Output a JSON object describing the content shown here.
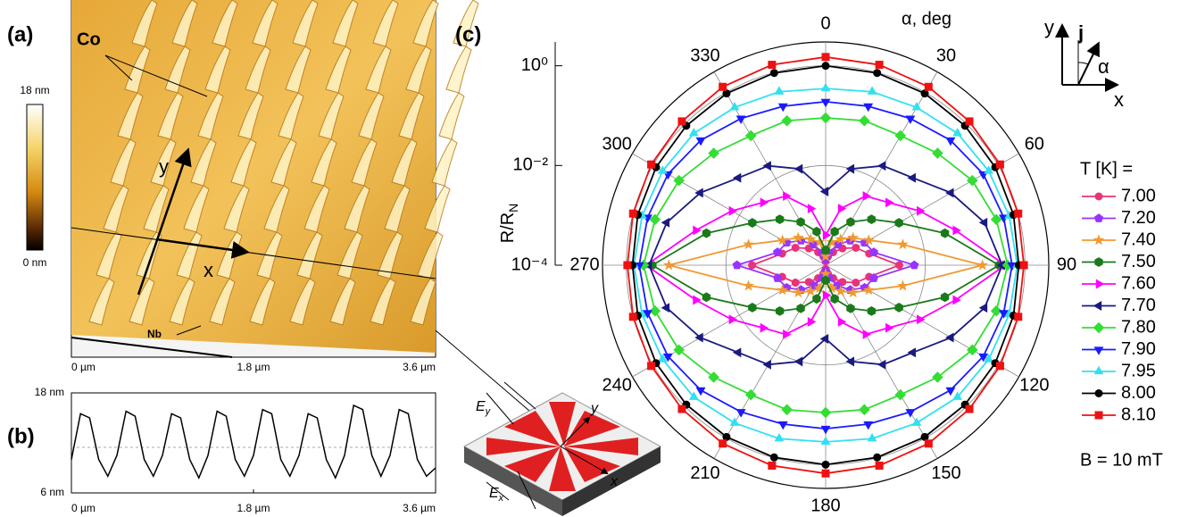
{
  "labels": {
    "a": "(a)",
    "b": "(b)",
    "c": "(c)",
    "co": "Co",
    "nb": "Nb",
    "scale_top": "18 nm",
    "scale_bottom": "0 nm",
    "x": "x",
    "y": "y",
    "a_x0": "0 µm",
    "a_x1": "1.8 µm",
    "a_x2": "3.6 µm",
    "ey": "E",
    "ey_sub": "y",
    "ex": "E",
    "ex_sub": "x",
    "dev_x": "x",
    "dev_y": "y",
    "corner_y": "y",
    "corner_j": "j",
    "corner_alpha": "α",
    "corner_x": "x"
  },
  "chart_data": [
    {
      "type": "line",
      "x": [
        0,
        0.09,
        0.18,
        0.27,
        0.36,
        0.45,
        0.54,
        0.63,
        0.72,
        0.81,
        0.9,
        0.99,
        1.08,
        1.17,
        1.26,
        1.35,
        1.44,
        1.53,
        1.62,
        1.71,
        1.8,
        1.89,
        1.98,
        2.07,
        2.16,
        2.25,
        2.34,
        2.43,
        2.52,
        2.61,
        2.7,
        2.79,
        2.88,
        2.97,
        3.06,
        3.15,
        3.24,
        3.33,
        3.42,
        3.51,
        3.6
      ],
      "series": [
        {
          "color": "#000000",
          "values": [
            10,
            15.5,
            15,
            10,
            8,
            10.5,
            15.8,
            15.2,
            10,
            8,
            10.5,
            15.5,
            15,
            10,
            7.8,
            10.5,
            15.8,
            15.2,
            10,
            8,
            10.5,
            16,
            15.5,
            10,
            8,
            10.5,
            15.5,
            15,
            10,
            7.8,
            10.5,
            16.5,
            16,
            10.5,
            8,
            10.5,
            16,
            15.5,
            10,
            8,
            9
          ]
        }
      ],
      "xlim": [
        0,
        3.6
      ],
      "xticks": [
        {
          "value": 0,
          "label": "0 µm"
        },
        {
          "value": 1.8,
          "label": "1.8 µm"
        },
        {
          "value": 3.6,
          "label": "3.6 µm"
        }
      ],
      "ylim": [
        6,
        18
      ],
      "yticks": [
        {
          "value": 6,
          "label": "6 nm"
        },
        {
          "value": 18,
          "label": "18 nm"
        }
      ]
    },
    {
      "type": "polar",
      "angle_label": "α, deg",
      "r_label": "R/R",
      "r_label_sub": "N",
      "legend_title": "T [K] =",
      "note": "B  = 10 mT",
      "log_r": true,
      "rlim": [
        0.0001,
        3
      ],
      "rticks": [
        {
          "value": 0.0001,
          "label": "10⁻⁴"
        },
        {
          "value": 0.01,
          "label": "10⁻²"
        },
        {
          "value": 1,
          "label": "10⁰"
        }
      ],
      "theta": [
        0,
        15,
        30,
        45,
        60,
        75,
        90,
        105,
        120,
        135,
        150,
        165,
        180,
        195,
        210,
        225,
        240,
        255,
        270,
        285,
        300,
        315,
        330,
        345
      ],
      "angular_ticks": [
        0,
        30,
        60,
        90,
        120,
        150,
        180,
        210,
        240,
        270,
        300,
        330
      ],
      "series": [
        {
          "name": "7.00",
          "color": "#e8337a",
          "marker": "circle",
          "values": [
            0.00012,
            0.00015,
            0.0002,
            0.0003,
            0.0005,
            0.0008,
            0.003,
            0.0008,
            0.0005,
            0.0003,
            0.0002,
            0.00015,
            0.00012,
            0.00015,
            0.0002,
            0.0003,
            0.0005,
            0.0008,
            0.003,
            0.0008,
            0.0005,
            0.0003,
            0.0002,
            0.00015
          ]
        },
        {
          "name": "7.20",
          "color": "#9933ff",
          "marker": "pentagon",
          "values": [
            0.00013,
            0.00018,
            0.0003,
            0.0005,
            0.0008,
            0.001,
            0.006,
            0.001,
            0.0008,
            0.0005,
            0.0003,
            0.00018,
            0.00013,
            0.00018,
            0.0003,
            0.0005,
            0.0008,
            0.001,
            0.006,
            0.001,
            0.0008,
            0.0005,
            0.0003,
            0.00018
          ]
        },
        {
          "name": "7.40",
          "color": "#f09a30",
          "marker": "star",
          "values": [
            0.00015,
            0.0003,
            0.0004,
            0.0006,
            0.001,
            0.004,
            0.14,
            0.004,
            0.001,
            0.0006,
            0.0004,
            0.0003,
            0.00015,
            0.0003,
            0.0004,
            0.0006,
            0.001,
            0.004,
            0.14,
            0.004,
            0.001,
            0.0006,
            0.0004,
            0.0003
          ]
        },
        {
          "name": "7.50",
          "color": "#1a7a1a",
          "marker": "hexagon",
          "values": [
            0.0002,
            0.0005,
            0.001,
            0.002,
            0.005,
            0.03,
            0.3,
            0.03,
            0.005,
            0.002,
            0.001,
            0.0005,
            0.0002,
            0.0005,
            0.001,
            0.002,
            0.005,
            0.03,
            0.3,
            0.03,
            0.005,
            0.002,
            0.001,
            0.0005
          ]
        },
        {
          "name": "7.60",
          "color": "#ff00ff",
          "marker": "triangle-right",
          "values": [
            0.0004,
            0.0015,
            0.004,
            0.006,
            0.015,
            0.05,
            0.4,
            0.05,
            0.015,
            0.006,
            0.004,
            0.0015,
            0.0004,
            0.0015,
            0.004,
            0.006,
            0.015,
            0.05,
            0.4,
            0.05,
            0.015,
            0.006,
            0.004,
            0.0015
          ]
        },
        {
          "name": "7.70",
          "color": "#1a1a80",
          "marker": "triangle-left",
          "values": [
            0.003,
            0.01,
            0.02,
            0.03,
            0.08,
            0.2,
            0.35,
            0.2,
            0.08,
            0.03,
            0.02,
            0.01,
            0.003,
            0.01,
            0.02,
            0.03,
            0.08,
            0.2,
            0.35,
            0.2,
            0.08,
            0.03,
            0.02,
            0.01
          ]
        },
        {
          "name": "7.80",
          "color": "#33dd33",
          "marker": "diamond",
          "values": [
            0.09,
            0.1,
            0.1,
            0.15,
            0.25,
            0.35,
            0.45,
            0.35,
            0.25,
            0.15,
            0.1,
            0.1,
            0.09,
            0.1,
            0.1,
            0.15,
            0.25,
            0.35,
            0.45,
            0.35,
            0.25,
            0.15,
            0.1,
            0.1
          ]
        },
        {
          "name": "7.90",
          "color": "#1a1aff",
          "marker": "triangle-down",
          "values": [
            0.19,
            0.2,
            0.25,
            0.35,
            0.45,
            0.5,
            0.55,
            0.5,
            0.45,
            0.35,
            0.25,
            0.2,
            0.19,
            0.2,
            0.25,
            0.35,
            0.45,
            0.5,
            0.55,
            0.5,
            0.45,
            0.35,
            0.25,
            0.2
          ]
        },
        {
          "name": "7.95",
          "color": "#33e0f0",
          "marker": "triangle-up",
          "values": [
            0.35,
            0.4,
            0.45,
            0.55,
            0.6,
            0.65,
            0.7,
            0.65,
            0.6,
            0.55,
            0.45,
            0.4,
            0.35,
            0.4,
            0.45,
            0.55,
            0.6,
            0.65,
            0.7,
            0.65,
            0.6,
            0.55,
            0.45,
            0.4
          ]
        },
        {
          "name": "8.00",
          "color": "#000000",
          "marker": "circle",
          "values": [
            1.0,
            0.98,
            0.95,
            0.9,
            0.85,
            0.8,
            0.75,
            0.8,
            0.85,
            0.9,
            0.95,
            0.98,
            1.0,
            0.98,
            0.95,
            0.9,
            0.85,
            0.8,
            0.75,
            0.8,
            0.85,
            0.9,
            0.95,
            0.98
          ]
        },
        {
          "name": "8.10",
          "color": "#ee1111",
          "marker": "square",
          "values": [
            1.5,
            1.45,
            1.35,
            1.2,
            1.1,
            1.0,
            0.95,
            1.0,
            1.1,
            1.2,
            1.35,
            1.45,
            1.5,
            1.45,
            1.35,
            1.2,
            1.1,
            1.0,
            0.95,
            1.0,
            1.1,
            1.2,
            1.35,
            1.45
          ]
        }
      ]
    }
  ]
}
